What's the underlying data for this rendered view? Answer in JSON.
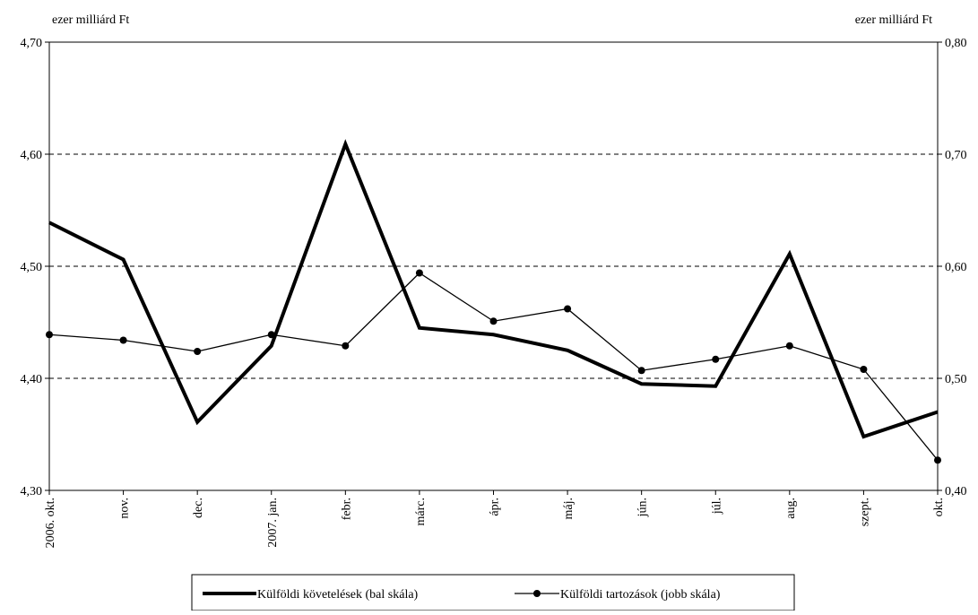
{
  "chart_data": {
    "type": "line",
    "categories": [
      "2006. okt.",
      "nov.",
      "dec.",
      "2007. jan.",
      "febr.",
      "márc.",
      "ápr.",
      "máj.",
      "jún.",
      "júl.",
      "aug.",
      "szept.",
      "okt."
    ],
    "left_axis": {
      "unit_label": "ezer milliárd Ft",
      "range": [
        4.3,
        4.7
      ],
      "ticks": [
        "4,30",
        "4,40",
        "4,50",
        "4,60",
        "4,70"
      ]
    },
    "right_axis": {
      "unit_label": "ezer milliárd Ft",
      "range": [
        0.4,
        0.8
      ],
      "ticks": [
        "0,40",
        "0,50",
        "0,60",
        "0,70",
        "0,80"
      ]
    },
    "grid": "horizontal dashed",
    "legend_position": "bottom",
    "series": [
      {
        "name": "Külföldi követelések (bal skála)",
        "axis": "left",
        "color": "#000000",
        "style": "thick line",
        "values": [
          4.539,
          4.506,
          4.361,
          4.429,
          4.609,
          4.445,
          4.439,
          4.425,
          4.395,
          4.393,
          4.511,
          4.348,
          4.37
        ]
      },
      {
        "name": "Külföldi tartozások (jobb skála)",
        "axis": "right",
        "color": "#000000",
        "style": "thin line with circle markers",
        "values": [
          0.539,
          0.534,
          0.524,
          0.539,
          0.529,
          0.594,
          0.551,
          0.562,
          0.507,
          0.517,
          0.529,
          0.508,
          0.427
        ]
      }
    ]
  }
}
